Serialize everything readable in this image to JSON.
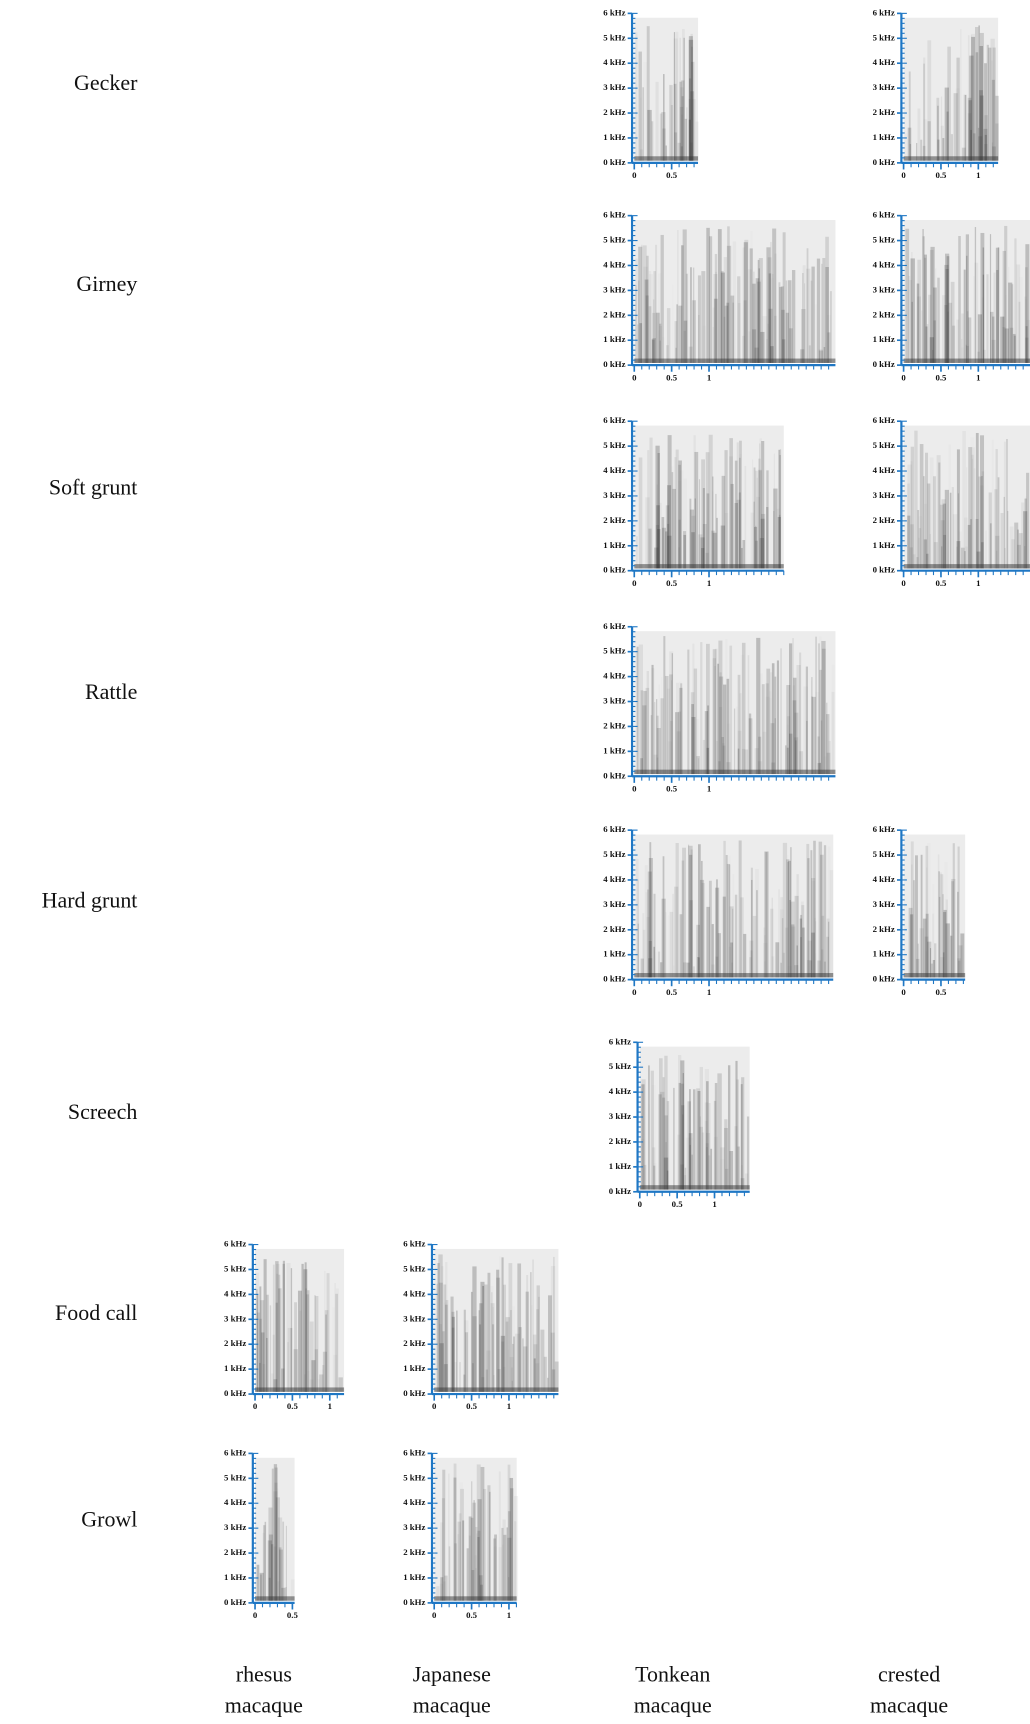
{
  "y_tick_labels": [
    "0 kHz",
    "1 kHz",
    "2 kHz",
    "3 kHz",
    "4 kHz",
    "5 kHz",
    "6 kHz"
  ],
  "columns": [
    "rhesus macaque",
    "Japanese macaque",
    "Tonkean macaque",
    "crested macaque"
  ],
  "rows": [
    {
      "label": "Gecker",
      "panels": [
        null,
        null,
        {
          "xticks": [
            0,
            0.5
          ]
        },
        {
          "xticks": [
            0,
            0.5,
            1
          ]
        }
      ]
    },
    {
      "label": "Girney",
      "panels": [
        null,
        null,
        {
          "xticks": [
            0,
            0.5,
            1
          ]
        },
        {
          "xticks": [
            0,
            0.5,
            1
          ]
        }
      ]
    },
    {
      "label": "Soft grunt",
      "panels": [
        null,
        null,
        {
          "xticks": [
            0,
            0.5,
            1
          ]
        },
        {
          "xticks": [
            0,
            0.5,
            1
          ]
        }
      ]
    },
    {
      "label": "Rattle",
      "panels": [
        null,
        null,
        {
          "xticks": [
            0,
            0.5,
            1
          ]
        },
        null
      ]
    },
    {
      "label": "Hard grunt",
      "panels": [
        null,
        null,
        {
          "xticks": [
            0,
            0.5,
            1
          ]
        },
        {
          "xticks": [
            0,
            0.5
          ]
        }
      ]
    },
    {
      "label": "Screech",
      "panels": [
        null,
        null,
        {
          "xticks": [
            0,
            0.5,
            1
          ]
        },
        null
      ]
    },
    {
      "label": "Food call",
      "panels": [
        {
          "xticks": [
            0,
            0.5,
            1
          ]
        },
        {
          "xticks": [
            0,
            0.5,
            1
          ]
        },
        null,
        null
      ]
    },
    {
      "label": "Growl",
      "panels": [
        {
          "xticks": [
            0,
            0.5
          ]
        },
        {
          "xticks": [
            0,
            0.5,
            1
          ]
        },
        null,
        null
      ]
    }
  ]
}
